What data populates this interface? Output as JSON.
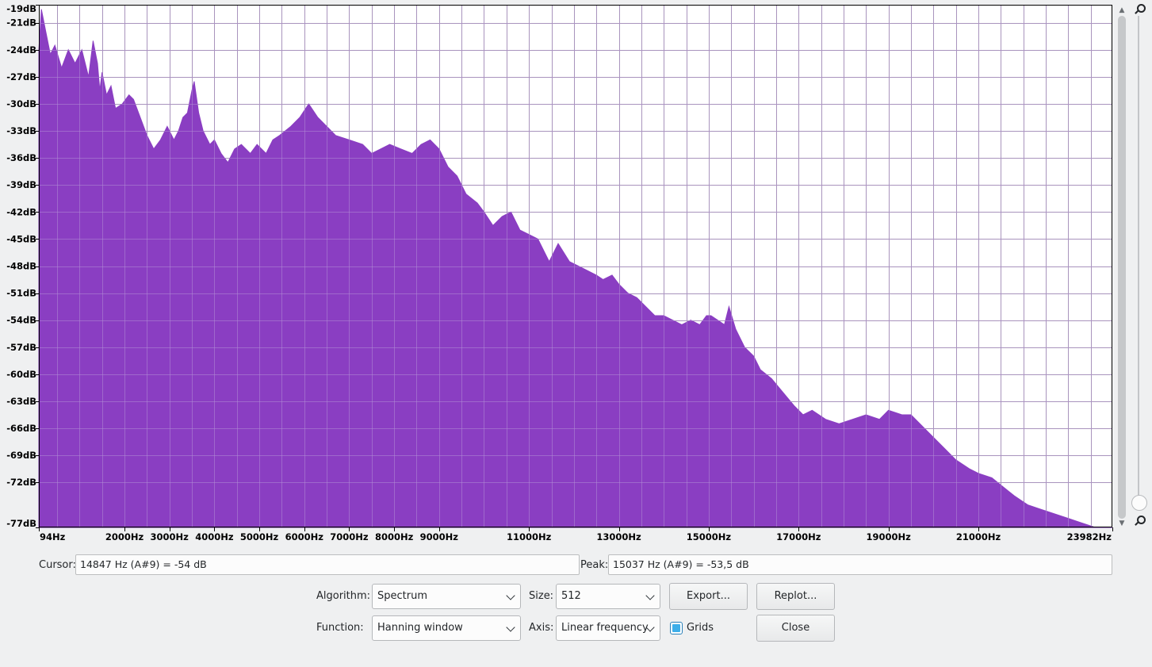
{
  "chart_data": {
    "type": "area",
    "xlabel": "",
    "ylabel": "",
    "x_range": [
      94,
      23982
    ],
    "y_range": [
      -77,
      -19
    ],
    "y_ticks": [
      "-19dB",
      "-21dB",
      "-24dB",
      "-27dB",
      "-30dB",
      "-33dB",
      "-36dB",
      "-39dB",
      "-42dB",
      "-45dB",
      "-48dB",
      "-51dB",
      "-54dB",
      "-57dB",
      "-60dB",
      "-63dB",
      "-66dB",
      "-69dB",
      "-72dB",
      "-77dB"
    ],
    "y_tick_values": [
      -19,
      -21,
      -24,
      -27,
      -30,
      -33,
      -36,
      -39,
      -42,
      -45,
      -48,
      -51,
      -54,
      -57,
      -60,
      -63,
      -66,
      -69,
      -72,
      -77
    ],
    "x_ticks": [
      "94Hz",
      "2000Hz",
      "3000Hz",
      "4000Hz",
      "5000Hz",
      "6000Hz",
      "7000Hz",
      "8000Hz",
      "9000Hz",
      "11000Hz",
      "13000Hz",
      "15000Hz",
      "17000Hz",
      "19000Hz",
      "21000Hz",
      "23982Hz"
    ],
    "x_tick_values": [
      94,
      2000,
      3000,
      4000,
      5000,
      6000,
      7000,
      8000,
      9000,
      11000,
      13000,
      15000,
      17000,
      19000,
      21000,
      23982
    ],
    "grid": true,
    "fill_color": "#8a3ec2",
    "series": [
      {
        "x": [
          94,
          150,
          250,
          350,
          450,
          600,
          750,
          900,
          1050,
          1200,
          1300,
          1400,
          1450,
          1500,
          1600,
          1700,
          1800,
          1950,
          2100,
          2200,
          2350,
          2500,
          2650,
          2800,
          2950,
          3100,
          3200,
          3300,
          3400,
          3500,
          3550,
          3650,
          3750,
          3900,
          4000,
          4150,
          4300,
          4450,
          4600,
          4800,
          4950,
          5150,
          5300,
          5450,
          5700,
          5900,
          6100,
          6300,
          6500,
          6700,
          7000,
          7300,
          7500,
          7700,
          7900,
          8150,
          8400,
          8600,
          8800,
          9000,
          9200,
          9400,
          9600,
          9850,
          10000,
          10200,
          10400,
          10600,
          10800,
          11000,
          11200,
          11350,
          11450,
          11650,
          11900,
          12100,
          12300,
          12500,
          12650,
          12850,
          13000,
          13200,
          13400,
          13600,
          13800,
          14000,
          14200,
          14400,
          14600,
          14800,
          14950,
          15050,
          15200,
          15350,
          15450,
          15600,
          15800,
          16000,
          16150,
          16400,
          16650,
          16900,
          17100,
          17300,
          17600,
          17900,
          18200,
          18500,
          18800,
          19000,
          19300,
          19500,
          19700,
          19900,
          20200,
          20500,
          20800,
          21000,
          21300,
          21550,
          21800,
          22100,
          22400,
          22700,
          23000,
          23300,
          23600,
          23982
        ],
        "y": [
          -24,
          -19.5,
          -22,
          -24.5,
          -23.5,
          -26,
          -24,
          -25.5,
          -24,
          -27,
          -23,
          -25.5,
          -28.5,
          -26.5,
          -29,
          -28,
          -30.5,
          -30,
          -29,
          -29.5,
          -31.5,
          -33.5,
          -35,
          -34,
          -32.5,
          -34,
          -33,
          -31.5,
          -31,
          -28.5,
          -27.5,
          -31,
          -33,
          -34.5,
          -34,
          -35.5,
          -36.5,
          -35,
          -34.5,
          -35.5,
          -34.5,
          -35.5,
          -34,
          -33.5,
          -32.5,
          -31.5,
          -30,
          -31.5,
          -32.5,
          -33.5,
          -34,
          -34.5,
          -35.5,
          -35,
          -34.5,
          -35,
          -35.5,
          -34.5,
          -34,
          -35,
          -37,
          -38,
          -40,
          -41,
          -42,
          -43.5,
          -42.5,
          -42,
          -44,
          -44.5,
          -45,
          -46.5,
          -47.5,
          -45.5,
          -47.5,
          -48,
          -48.5,
          -49,
          -49.5,
          -49,
          -50,
          -51,
          -51.5,
          -52.5,
          -53.5,
          -53.5,
          -54,
          -54.5,
          -54,
          -54.5,
          -53.5,
          -53.5,
          -54,
          -54.5,
          -52.5,
          -55,
          -57,
          -58,
          -59.5,
          -60.5,
          -62,
          -63.5,
          -64.5,
          -64,
          -65,
          -65.5,
          -65,
          -64.5,
          -65,
          -64,
          -64.5,
          -64.5,
          -65.5,
          -66.5,
          -68,
          -69.5,
          -70.5,
          -71,
          -71.5,
          -72.5,
          -73.5,
          -74.5,
          -75,
          -75.5,
          -76,
          -76.5,
          -77,
          -77
        ]
      }
    ]
  },
  "cursor": {
    "label": "Cursor:",
    "value": "14847 Hz (A#9) = -54 dB"
  },
  "peak": {
    "label": "Peak:",
    "value": "15037 Hz (A#9) = -53,5 dB"
  },
  "controls": {
    "algorithm_label": "Algorithm:",
    "algorithm_value": "Spectrum",
    "size_label": "Size:",
    "size_value": "512",
    "function_label": "Function:",
    "function_value": "Hanning window",
    "axis_label": "Axis:",
    "axis_value": "Linear frequency",
    "grids_label": "Grids",
    "grids_checked": true,
    "export_label": "Export...",
    "replot_label": "Replot...",
    "close_label": "Close"
  },
  "icons": {
    "zoom_in": "zoom-in-icon",
    "zoom_out": "zoom-out-icon"
  }
}
